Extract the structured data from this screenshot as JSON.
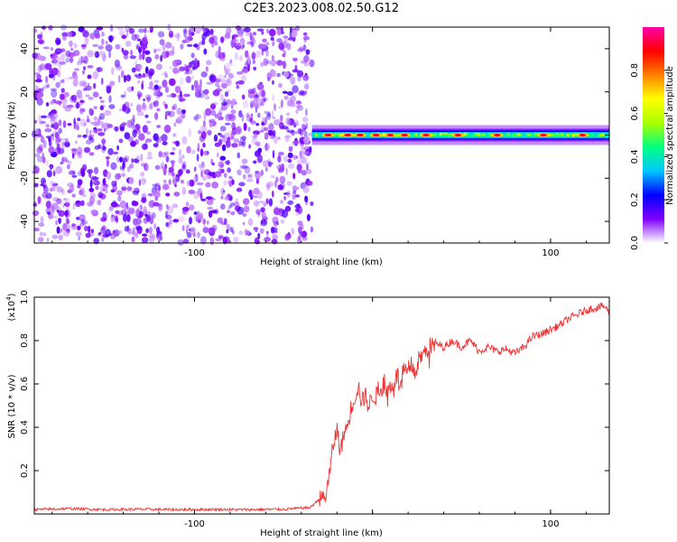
{
  "title": "C2E3.2023.008.02.50.G12",
  "chart_data": [
    {
      "type": "heatmap",
      "xlabel": "Height of straight line (km)",
      "ylabel": "Frequency (Hz)",
      "xlim": [
        -190,
        133
      ],
      "ylim": [
        -50,
        50
      ],
      "xticks": [
        -100,
        0,
        100
      ],
      "xtick_labels": [
        "-100",
        "",
        "100"
      ],
      "yticks": [
        40,
        20,
        0,
        -20,
        -40
      ],
      "ytick_labels": [
        "40",
        "20",
        "0",
        "-20",
        "-40"
      ],
      "regions": [
        {
          "kind": "noise",
          "x_range": [
            -190,
            -34
          ],
          "y_range": [
            -50,
            50
          ]
        },
        {
          "kind": "signal",
          "x_range": [
            -34,
            133
          ],
          "center_hz": 0,
          "peaks_x": [
            -25,
            -14,
            -7,
            2,
            10,
            18,
            30,
            48,
            70,
            96,
            118
          ]
        }
      ],
      "colorbar": {
        "label": "Normalized spectral amplitude",
        "range": [
          0,
          1
        ],
        "ticks": [
          0.0,
          0.2,
          0.4,
          0.6,
          0.8
        ],
        "tick_labels": [
          "0.0",
          "0.2",
          "0.4",
          "0.6",
          "0.8"
        ],
        "colors": [
          "#ffffff",
          "#7f00ff",
          "#0000ff",
          "#00c8ff",
          "#00ff80",
          "#aaff00",
          "#ffff00",
          "#ff8000",
          "#ff0000",
          "#ff00aa"
        ]
      }
    },
    {
      "type": "line",
      "xlabel": "Height of straight line (km)",
      "ylabel": "SNR (10 * v/v)",
      "scale_label_base": "(x10",
      "scale_label_exp": "4",
      "scale_label_close": ")",
      "xlim": [
        -190,
        133
      ],
      "ylim": [
        0,
        1.0
      ],
      "xticks": [
        -100,
        0,
        100
      ],
      "xtick_labels": [
        "-100",
        "",
        "100"
      ],
      "yticks": [
        0.2,
        0.4,
        0.6,
        0.8,
        1.0
      ],
      "ytick_labels": [
        "0.2",
        "0.4",
        "0.6",
        "0.8",
        "1.0"
      ],
      "series": [
        {
          "color": "#ee3333",
          "x": [
            -190,
            -170,
            -150,
            -130,
            -110,
            -90,
            -70,
            -50,
            -35,
            -26,
            -24,
            -22,
            -20,
            -18,
            -16,
            -14,
            -12,
            -10,
            -8,
            -6,
            -4,
            -2,
            0,
            2,
            4,
            6,
            8,
            10,
            12,
            14,
            16,
            18,
            20,
            22,
            24,
            26,
            28,
            30,
            32,
            35,
            40,
            45,
            50,
            55,
            60,
            65,
            70,
            75,
            80,
            85,
            90,
            95,
            100,
            105,
            110,
            115,
            120,
            125,
            130,
            133
          ],
          "y": [
            0.02,
            0.025,
            0.02,
            0.022,
            0.02,
            0.021,
            0.02,
            0.022,
            0.03,
            0.1,
            0.2,
            0.33,
            0.4,
            0.3,
            0.38,
            0.42,
            0.5,
            0.55,
            0.6,
            0.52,
            0.56,
            0.5,
            0.56,
            0.55,
            0.58,
            0.6,
            0.57,
            0.6,
            0.62,
            0.65,
            0.6,
            0.68,
            0.64,
            0.7,
            0.66,
            0.72,
            0.74,
            0.76,
            0.78,
            0.79,
            0.77,
            0.8,
            0.77,
            0.8,
            0.75,
            0.77,
            0.75,
            0.76,
            0.74,
            0.77,
            0.82,
            0.83,
            0.85,
            0.87,
            0.9,
            0.92,
            0.94,
            0.95,
            0.96,
            0.93
          ]
        }
      ]
    }
  ]
}
